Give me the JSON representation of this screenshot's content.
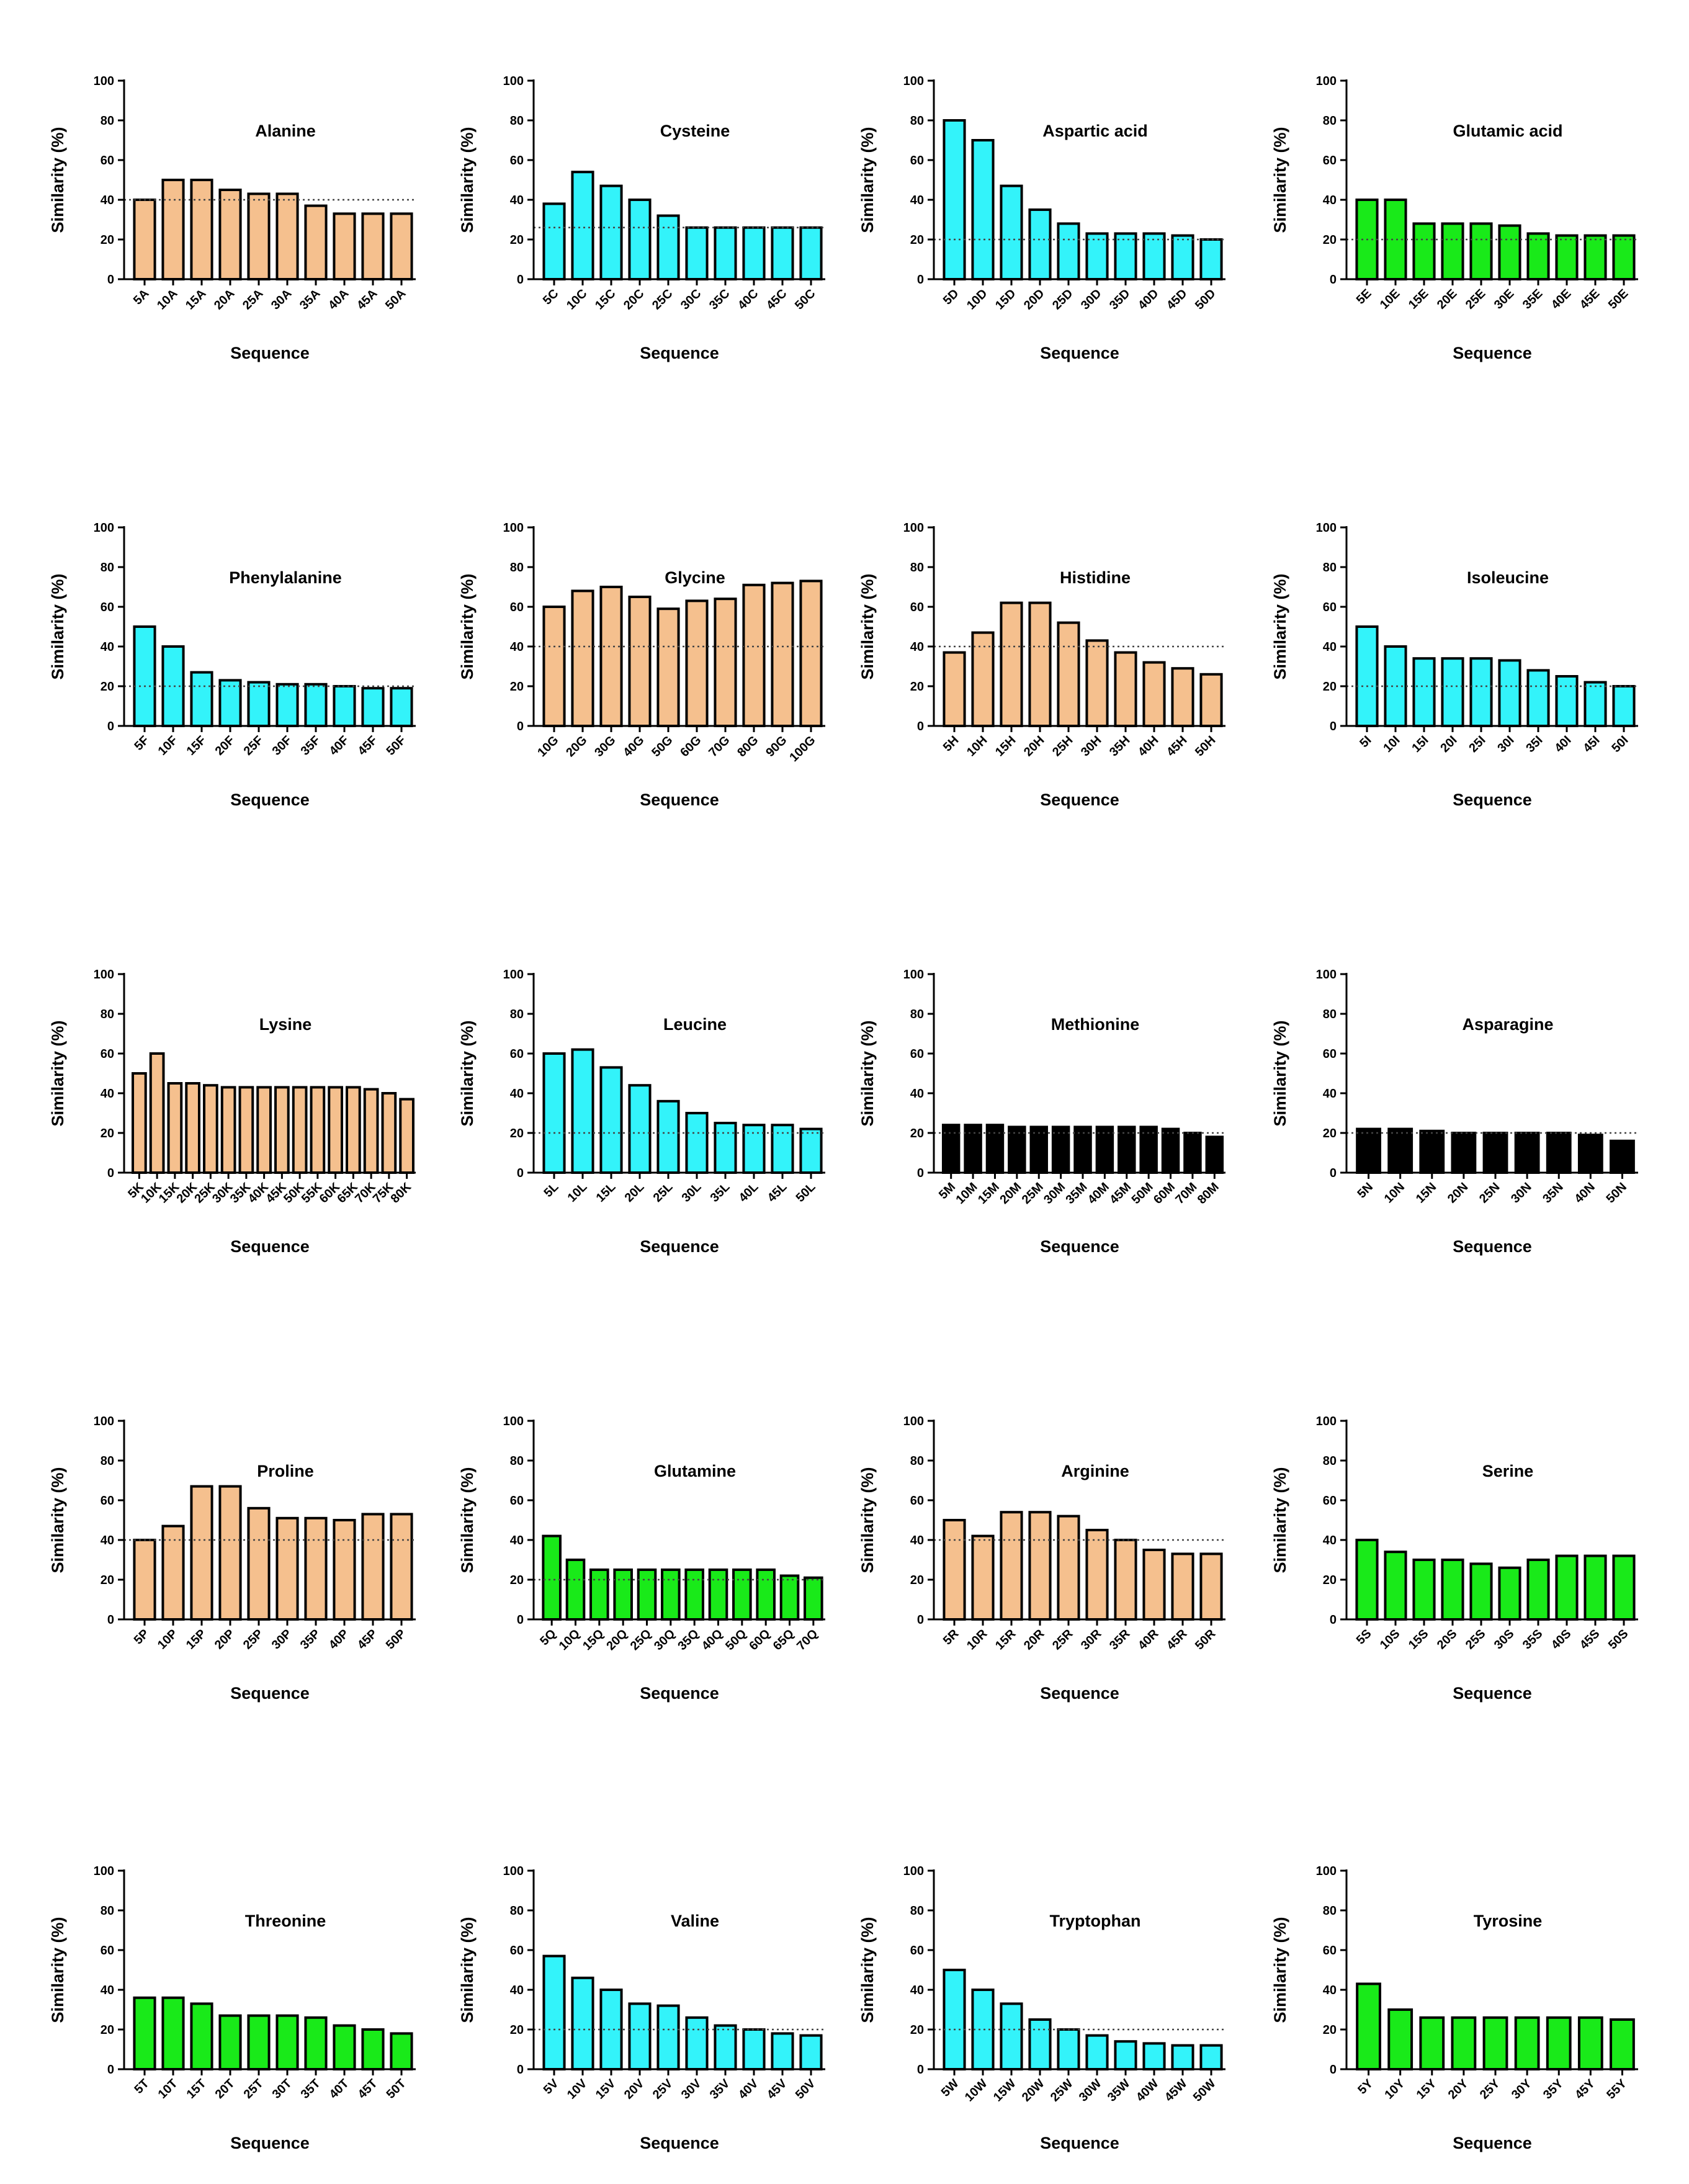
{
  "figure": {
    "colors": {
      "orange": "#F5C08E",
      "cyan": "#33F3FA",
      "green": "#19EA19",
      "black": "#000000"
    }
  },
  "chart_data": [
    {
      "type": "bar",
      "title": "Alanine",
      "color": "orange",
      "xlabel": "Sequence",
      "ylabel": "Similarity (%)",
      "ylim": [
        0,
        100
      ],
      "yticks": [
        0,
        20,
        40,
        60,
        80,
        100
      ],
      "reference_line": 40,
      "categories": [
        "5A",
        "10A",
        "15A",
        "20A",
        "25A",
        "30A",
        "35A",
        "40A",
        "45A",
        "50A"
      ],
      "values": [
        40,
        50,
        50,
        45,
        43,
        43,
        37,
        33,
        33,
        33
      ]
    },
    {
      "type": "bar",
      "title": "Cysteine",
      "color": "cyan",
      "xlabel": "Sequence",
      "ylabel": "Similarity (%)",
      "ylim": [
        0,
        100
      ],
      "yticks": [
        0,
        20,
        40,
        60,
        80,
        100
      ],
      "reference_line": 26,
      "categories": [
        "5C",
        "10C",
        "15C",
        "20C",
        "25C",
        "30C",
        "35C",
        "40C",
        "45C",
        "50C"
      ],
      "values": [
        38,
        54,
        47,
        40,
        32,
        26,
        26,
        26,
        26,
        26
      ]
    },
    {
      "type": "bar",
      "title": "Aspartic acid",
      "color": "cyan",
      "xlabel": "Sequence",
      "ylabel": "Similarity (%)",
      "ylim": [
        0,
        100
      ],
      "yticks": [
        0,
        20,
        40,
        60,
        80,
        100
      ],
      "reference_line": 20,
      "categories": [
        "5D",
        "10D",
        "15D",
        "20D",
        "25D",
        "30D",
        "35D",
        "40D",
        "45D",
        "50D"
      ],
      "values": [
        80,
        70,
        47,
        35,
        28,
        23,
        23,
        23,
        22,
        20
      ]
    },
    {
      "type": "bar",
      "title": "Glutamic acid",
      "color": "green",
      "xlabel": "Sequence",
      "ylabel": "Similarity (%)",
      "ylim": [
        0,
        100
      ],
      "yticks": [
        0,
        20,
        40,
        60,
        80,
        100
      ],
      "reference_line": 20,
      "categories": [
        "5E",
        "10E",
        "15E",
        "20E",
        "25E",
        "30E",
        "35E",
        "40E",
        "45E",
        "50E"
      ],
      "values": [
        40,
        40,
        28,
        28,
        28,
        27,
        23,
        22,
        22,
        22
      ]
    },
    {
      "type": "bar",
      "title": "Phenylalanine",
      "color": "cyan",
      "xlabel": "Sequence",
      "ylabel": "Similarity (%)",
      "ylim": [
        0,
        100
      ],
      "yticks": [
        0,
        20,
        40,
        60,
        80,
        100
      ],
      "reference_line": 20,
      "categories": [
        "5F",
        "10F",
        "15F",
        "20F",
        "25F",
        "30F",
        "35F",
        "40F",
        "45F",
        "50F"
      ],
      "values": [
        50,
        40,
        27,
        23,
        22,
        21,
        21,
        20,
        19,
        19
      ]
    },
    {
      "type": "bar",
      "title": "Glycine",
      "color": "orange",
      "xlabel": "Sequence",
      "ylabel": "Similarity (%)",
      "ylim": [
        0,
        100
      ],
      "yticks": [
        0,
        20,
        40,
        60,
        80,
        100
      ],
      "reference_line": 40,
      "categories": [
        "10G",
        "20G",
        "30G",
        "40G",
        "50G",
        "60G",
        "70G",
        "80G",
        "90G",
        "100G"
      ],
      "values": [
        60,
        68,
        70,
        65,
        59,
        63,
        64,
        71,
        72,
        73
      ]
    },
    {
      "type": "bar",
      "title": "Histidine",
      "color": "orange",
      "xlabel": "Sequence",
      "ylabel": "Similarity (%)",
      "ylim": [
        0,
        100
      ],
      "yticks": [
        0,
        20,
        40,
        60,
        80,
        100
      ],
      "reference_line": 40,
      "categories": [
        "5H",
        "10H",
        "15H",
        "20H",
        "25H",
        "30H",
        "35H",
        "40H",
        "45H",
        "50H"
      ],
      "values": [
        37,
        47,
        62,
        62,
        52,
        43,
        37,
        32,
        29,
        26
      ]
    },
    {
      "type": "bar",
      "title": "Isoleucine",
      "color": "cyan",
      "xlabel": "Sequence",
      "ylabel": "Similarity (%)",
      "ylim": [
        0,
        100
      ],
      "yticks": [
        0,
        20,
        40,
        60,
        80,
        100
      ],
      "reference_line": 20,
      "categories": [
        "5I",
        "10I",
        "15I",
        "20I",
        "25I",
        "30I",
        "35I",
        "40I",
        "45I",
        "50I"
      ],
      "values": [
        50,
        40,
        34,
        34,
        34,
        33,
        28,
        25,
        22,
        20
      ]
    },
    {
      "type": "bar",
      "title": "Lysine",
      "color": "orange",
      "xlabel": "Sequence",
      "ylabel": "Similarity (%)",
      "ylim": [
        0,
        100
      ],
      "yticks": [
        0,
        20,
        40,
        60,
        80,
        100
      ],
      "reference_line": null,
      "categories": [
        "5K",
        "10K",
        "15K",
        "20K",
        "25K",
        "30K",
        "35K",
        "40K",
        "45K",
        "50K",
        "55K",
        "60K",
        "65K",
        "70K",
        "75K",
        "80K"
      ],
      "values": [
        50,
        60,
        45,
        45,
        44,
        43,
        43,
        43,
        43,
        43,
        43,
        43,
        43,
        42,
        40,
        37
      ]
    },
    {
      "type": "bar",
      "title": "Leucine",
      "color": "cyan",
      "xlabel": "Sequence",
      "ylabel": "Similarity (%)",
      "ylim": [
        0,
        100
      ],
      "yticks": [
        0,
        20,
        40,
        60,
        80,
        100
      ],
      "reference_line": 20,
      "categories": [
        "5L",
        "10L",
        "15L",
        "20L",
        "25L",
        "30L",
        "35L",
        "40L",
        "45L",
        "50L"
      ],
      "values": [
        60,
        62,
        53,
        44,
        36,
        30,
        25,
        24,
        24,
        22
      ]
    },
    {
      "type": "bar",
      "title": "Methionine",
      "color": "black",
      "xlabel": "Sequence",
      "ylabel": "Similarity (%)",
      "ylim": [
        0,
        100
      ],
      "yticks": [
        0,
        20,
        40,
        60,
        80,
        100
      ],
      "reference_line": 20,
      "categories": [
        "5M",
        "10M",
        "15M",
        "20M",
        "25M",
        "30M",
        "35M",
        "40M",
        "45M",
        "50M",
        "60M",
        "70M",
        "80M"
      ],
      "values": [
        24,
        24,
        24,
        23,
        23,
        23,
        23,
        23,
        23,
        23,
        22,
        20,
        18
      ]
    },
    {
      "type": "bar",
      "title": "Asparagine",
      "color": "black",
      "xlabel": "Sequence",
      "ylabel": "Similarity (%)",
      "ylim": [
        0,
        100
      ],
      "yticks": [
        0,
        20,
        40,
        60,
        80,
        100
      ],
      "reference_line": 20,
      "categories": [
        "5N",
        "10N",
        "15N",
        "20N",
        "25N",
        "30N",
        "35N",
        "40N",
        "50N"
      ],
      "values": [
        22,
        22,
        21,
        20,
        20,
        20,
        20,
        19,
        16
      ]
    },
    {
      "type": "bar",
      "title": "Proline",
      "color": "orange",
      "xlabel": "Sequence",
      "ylabel": "Similarity (%)",
      "ylim": [
        0,
        100
      ],
      "yticks": [
        0,
        20,
        40,
        60,
        80,
        100
      ],
      "reference_line": 40,
      "categories": [
        "5P",
        "10P",
        "15P",
        "20P",
        "25P",
        "30P",
        "35P",
        "40P",
        "45P",
        "50P"
      ],
      "values": [
        40,
        47,
        67,
        67,
        56,
        51,
        51,
        50,
        53,
        53
      ]
    },
    {
      "type": "bar",
      "title": "Glutamine",
      "color": "green",
      "xlabel": "Sequence",
      "ylabel": "Similarity (%)",
      "ylim": [
        0,
        100
      ],
      "yticks": [
        0,
        20,
        40,
        60,
        80,
        100
      ],
      "reference_line": 20,
      "categories": [
        "5Q",
        "10Q",
        "15Q",
        "20Q",
        "25Q",
        "30Q",
        "35Q",
        "40Q",
        "50Q",
        "60Q",
        "65Q",
        "70Q"
      ],
      "values": [
        42,
        30,
        25,
        25,
        25,
        25,
        25,
        25,
        25,
        25,
        22,
        21
      ]
    },
    {
      "type": "bar",
      "title": "Arginine",
      "color": "orange",
      "xlabel": "Sequence",
      "ylabel": "Similarity (%)",
      "ylim": [
        0,
        100
      ],
      "yticks": [
        0,
        20,
        40,
        60,
        80,
        100
      ],
      "reference_line": 40,
      "categories": [
        "5R",
        "10R",
        "15R",
        "20R",
        "25R",
        "30R",
        "35R",
        "40R",
        "45R",
        "50R"
      ],
      "values": [
        50,
        42,
        54,
        54,
        52,
        45,
        40,
        35,
        33,
        33
      ]
    },
    {
      "type": "bar",
      "title": "Serine",
      "color": "green",
      "xlabel": "Sequence",
      "ylabel": "Similarity (%)",
      "ylim": [
        0,
        100
      ],
      "yticks": [
        0,
        20,
        40,
        60,
        80,
        100
      ],
      "reference_line": null,
      "categories": [
        "5S",
        "10S",
        "15S",
        "20S",
        "25S",
        "30S",
        "35S",
        "40S",
        "45S",
        "50S"
      ],
      "values": [
        40,
        34,
        30,
        30,
        28,
        26,
        30,
        32,
        32,
        32
      ]
    },
    {
      "type": "bar",
      "title": "Threonine",
      "color": "green",
      "xlabel": "Sequence",
      "ylabel": "Similarity (%)",
      "ylim": [
        0,
        100
      ],
      "yticks": [
        0,
        20,
        40,
        60,
        80,
        100
      ],
      "reference_line": null,
      "categories": [
        "5T",
        "10T",
        "15T",
        "20T",
        "25T",
        "30T",
        "35T",
        "40T",
        "45T",
        "50T"
      ],
      "values": [
        36,
        36,
        33,
        27,
        27,
        27,
        26,
        22,
        20,
        18
      ]
    },
    {
      "type": "bar",
      "title": "Valine",
      "color": "cyan",
      "xlabel": "Sequence",
      "ylabel": "Similarity (%)",
      "ylim": [
        0,
        100
      ],
      "yticks": [
        0,
        20,
        40,
        60,
        80,
        100
      ],
      "reference_line": 20,
      "categories": [
        "5V",
        "10V",
        "15V",
        "20V",
        "25V",
        "30V",
        "35V",
        "40V",
        "45V",
        "50V"
      ],
      "values": [
        57,
        46,
        40,
        33,
        32,
        26,
        22,
        20,
        18,
        17
      ]
    },
    {
      "type": "bar",
      "title": "Tryptophan",
      "color": "cyan",
      "xlabel": "Sequence",
      "ylabel": "Similarity (%)",
      "ylim": [
        0,
        100
      ],
      "yticks": [
        0,
        20,
        40,
        60,
        80,
        100
      ],
      "reference_line": 20,
      "categories": [
        "5W",
        "10W",
        "15W",
        "20W",
        "25W",
        "30W",
        "35W",
        "40W",
        "45W",
        "50W"
      ],
      "values": [
        50,
        40,
        33,
        25,
        20,
        17,
        14,
        13,
        12,
        12
      ]
    },
    {
      "type": "bar",
      "title": "Tyrosine",
      "color": "green",
      "xlabel": "Sequence",
      "ylabel": "Similarity (%)",
      "ylim": [
        0,
        100
      ],
      "yticks": [
        0,
        20,
        40,
        60,
        80,
        100
      ],
      "reference_line": null,
      "categories": [
        "5Y",
        "10Y",
        "15Y",
        "20Y",
        "25Y",
        "30Y",
        "35Y",
        "45Y",
        "55Y"
      ],
      "values": [
        43,
        30,
        26,
        26,
        26,
        26,
        26,
        26,
        25
      ]
    }
  ]
}
